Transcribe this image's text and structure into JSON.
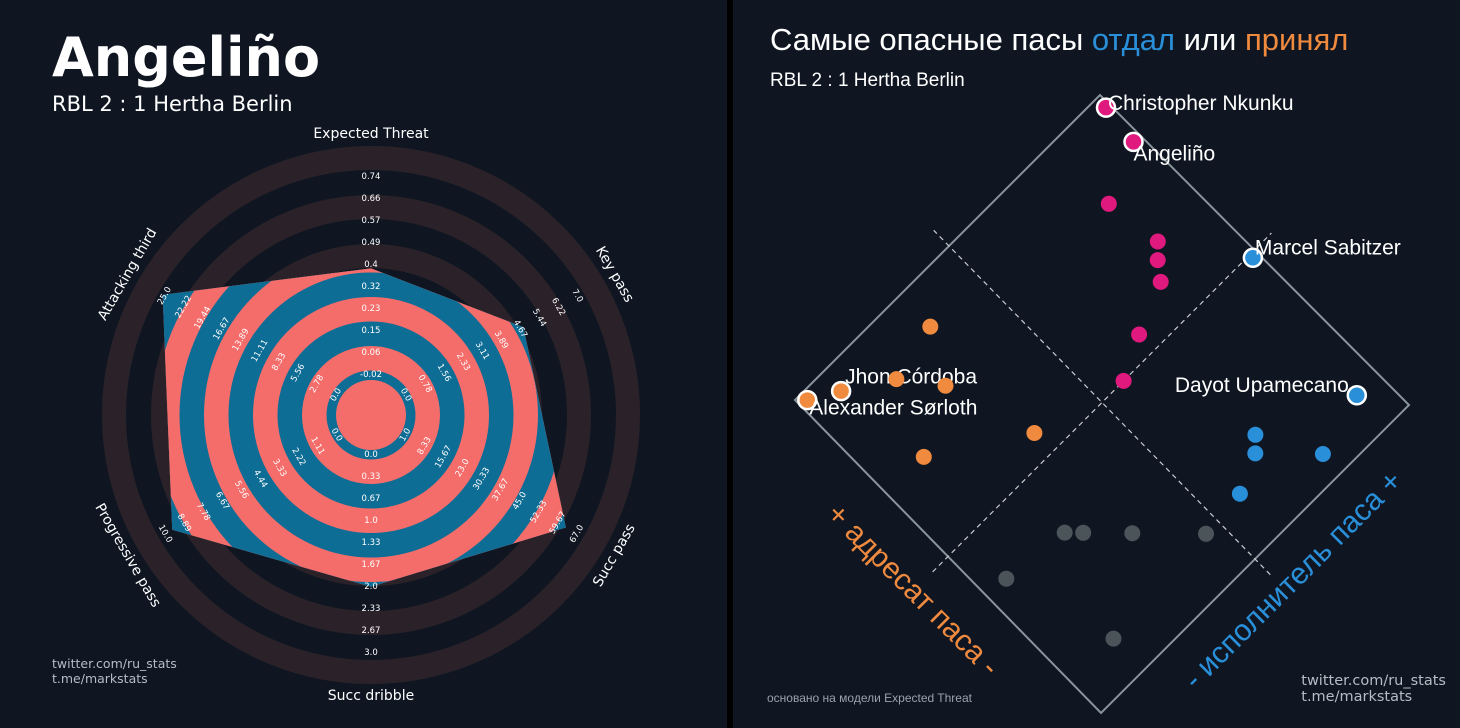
{
  "radar": {
    "player": "Angeliño",
    "match": "RBL 2 : 1 Hertha Berlin",
    "credit_line1": "twitter.com/ru_stats",
    "credit_line2": "t.me/markstats"
  },
  "scatter": {
    "title_start": "Самые опасные пасы ",
    "title_given": "отдал",
    "title_mid": " или ",
    "title_received": "принял",
    "match": "RBL 2 : 1 Hertha Berlin",
    "model_note": "основано на модели Expected Threat",
    "axis_receiver": "+ адресат паса -",
    "axis_passer": "- исполнитель паса +",
    "credit_line1": "twitter.com/ru_stats",
    "credit_line2": "t.me/markstats"
  },
  "colors": {
    "background": "#0f1622",
    "radar_ring_light": "#f46d6b",
    "radar_ring_dark": "#0e6d95",
    "radar_outer_ring": "#2a2228",
    "passer": "#2a8fd9",
    "receiver": "#ef8a3e",
    "both": "#e0197e",
    "neutral": "#4a5459"
  },
  "chart_data": [
    {
      "type": "radar",
      "title": "Angeliño",
      "subtitle": "RBL 2 : 1 Hertha Berlin",
      "axes": [
        {
          "label": "Expected Threat",
          "ticks": [
            "-0.02",
            "0.06",
            "0.15",
            "0.23",
            "0.32",
            "0.4",
            "0.49",
            "0.57",
            "0.66",
            "0.74"
          ],
          "value": 0.4
        },
        {
          "label": "Key pass",
          "ticks": [
            "0.0",
            "0.78",
            "1.56",
            "2.33",
            "3.11",
            "3.89",
            "4.67",
            "5.44",
            "6.22",
            "7.0"
          ],
          "value": 4.8
        },
        {
          "label": "Succ pass",
          "ticks": [
            "1.0",
            "8.33",
            "15.67",
            "23.0",
            "30.33",
            "37.67",
            "45.0",
            "52.33",
            "59.67",
            "67.0"
          ],
          "value": 61
        },
        {
          "label": "Succ dribble",
          "ticks": [
            "0.0",
            "0.33",
            "0.67",
            "1.0",
            "1.33",
            "1.67",
            "2.0",
            "2.33",
            "2.67",
            "3.0"
          ],
          "value": 2.0
        },
        {
          "label": "Progressive pass",
          "ticks": [
            "0.0",
            "1.11",
            "2.22",
            "3.33",
            "4.44",
            "5.56",
            "6.67",
            "7.78",
            "8.89",
            "10.0"
          ],
          "value": 9.3
        },
        {
          "label": "Attacking third",
          "ticks": [
            "0.0",
            "2.78",
            "5.56",
            "8.33",
            "11.11",
            "13.89",
            "16.67",
            "19.44",
            "22.22",
            "25.0"
          ],
          "value": 24.5
        }
      ]
    },
    {
      "type": "scatter",
      "title": "Самые опасные пасы отдал или принял",
      "subtitle": "RBL 2 : 1 Hertha Berlin",
      "annotation": "основано на модели Expected Threat",
      "axis_labels": [
        "+ адресат паса -",
        "- исполнитель паса +"
      ],
      "x_label": "исполнитель паса",
      "y_label": "адресат паса",
      "x_range": [
        0,
        1
      ],
      "y_range": [
        0,
        1
      ],
      "points": [
        {
          "player": "Christopher Nkunku",
          "x": 0.98,
          "y": 0.97,
          "group": "both",
          "highlight": true
        },
        {
          "player": "Angeliño",
          "x": 0.97,
          "y": 0.87,
          "group": "both",
          "highlight": true
        },
        {
          "player": "",
          "x": 0.83,
          "y": 0.81,
          "group": "both"
        },
        {
          "player": "",
          "x": 0.79,
          "y": 0.6,
          "group": "both"
        },
        {
          "player": "",
          "x": 0.82,
          "y": 0.64,
          "group": "both"
        },
        {
          "player": "",
          "x": 0.85,
          "y": 0.67,
          "group": "both"
        },
        {
          "player": "",
          "x": 0.67,
          "y": 0.55,
          "group": "both"
        },
        {
          "player": "",
          "x": 0.57,
          "y": 0.5,
          "group": "both"
        },
        {
          "player": "Marcel Sabitzer",
          "x": 0.98,
          "y": 0.49,
          "group": "passer",
          "highlight": true
        },
        {
          "player": "Dayot Upamecano",
          "x": 0.93,
          "y": 0.1,
          "group": "passer",
          "highlight": true
        },
        {
          "player": "",
          "x": 0.7,
          "y": 0.2,
          "group": "passer"
        },
        {
          "player": "",
          "x": 0.67,
          "y": 0.17,
          "group": "passer"
        },
        {
          "player": "",
          "x": 0.78,
          "y": 0.06,
          "group": "passer"
        },
        {
          "player": "",
          "x": 0.58,
          "y": 0.13,
          "group": "passer"
        },
        {
          "player": "Alexander Sørloth",
          "x": 0.02,
          "y": 0.98,
          "group": "receiver",
          "highlight": true
        },
        {
          "player": "Jhon Córdoba",
          "x": 0.09,
          "y": 0.94,
          "group": "receiver",
          "highlight": true
        },
        {
          "player": "",
          "x": 0.34,
          "y": 0.9,
          "group": "receiver"
        },
        {
          "player": "",
          "x": 0.27,
          "y": 0.78,
          "group": "receiver"
        },
        {
          "player": "",
          "x": 0.12,
          "y": 0.7,
          "group": "receiver"
        },
        {
          "player": "",
          "x": 0.34,
          "y": 0.56,
          "group": "receiver"
        },
        {
          "player": "",
          "x": 0.2,
          "y": 0.87,
          "group": "receiver"
        },
        {
          "player": "",
          "x": 0.23,
          "y": 0.35,
          "group": "neutral"
        },
        {
          "player": "",
          "x": 0.26,
          "y": 0.32,
          "group": "neutral"
        },
        {
          "player": "",
          "x": 0.34,
          "y": 0.24,
          "group": "neutral"
        },
        {
          "player": "",
          "x": 0.46,
          "y": 0.12,
          "group": "neutral"
        },
        {
          "player": "",
          "x": 0.06,
          "y": 0.37,
          "group": "neutral"
        },
        {
          "player": "",
          "x": 0.14,
          "y": 0.1,
          "group": "neutral"
        }
      ]
    }
  ]
}
